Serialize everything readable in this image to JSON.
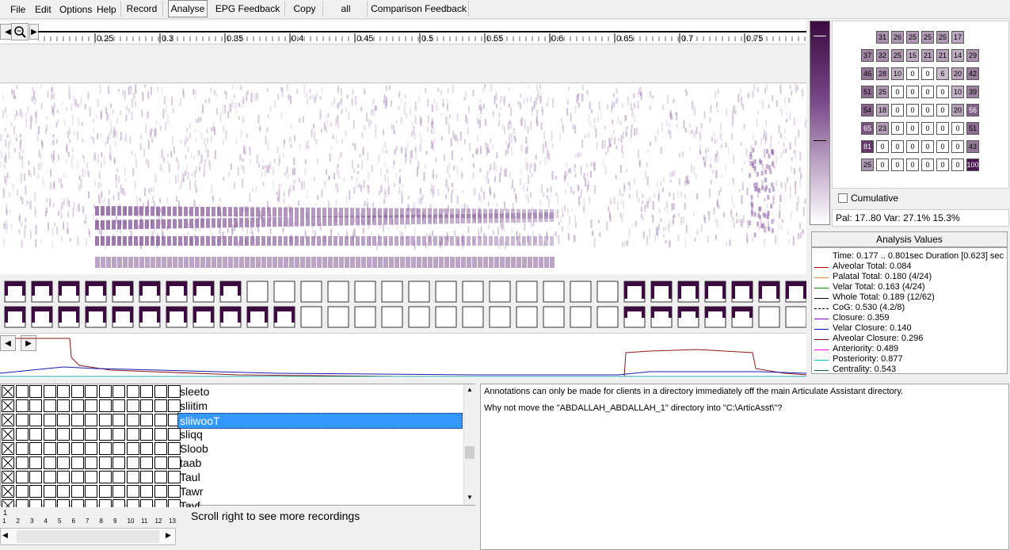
{
  "menu": {
    "file": "File",
    "edit": "Edit",
    "options": "Options",
    "help": "Help"
  },
  "toolbar": {
    "record": "Record",
    "analyse": "Analyse",
    "epg_feedback": "EPG Feedback",
    "copy": "Copy",
    "all": "all",
    "comparison": "Comparison Feedback"
  },
  "ruler": {
    "ticks": [
      "0.25",
      "0.3",
      "0.35",
      "0.4",
      "0.45",
      "0.5",
      "0.55",
      "0.6",
      "0.65",
      "0.7",
      "0.75"
    ]
  },
  "palate_grid": [
    [
      "",
      "31",
      "26",
      "25",
      "25",
      "25",
      "17",
      ""
    ],
    [
      "37",
      "32",
      "25",
      "15",
      "21",
      "21",
      "14",
      "29"
    ],
    [
      "46",
      "28",
      "10",
      "0",
      "0",
      "6",
      "20",
      "42"
    ],
    [
      "51",
      "25",
      "0",
      "0",
      "0",
      "0",
      "10",
      "39"
    ],
    [
      "54",
      "18",
      "0",
      "0",
      "0",
      "0",
      "20",
      "56"
    ],
    [
      "65",
      "23",
      "0",
      "0",
      "0",
      "0",
      "0",
      "51"
    ],
    [
      "81",
      "0",
      "0",
      "0",
      "0",
      "0",
      "0",
      "43"
    ],
    [
      "25",
      "0",
      "0",
      "0",
      "0",
      "0",
      "0",
      "100"
    ]
  ],
  "cumulative_label": "Cumulative",
  "pal_info": "Pal: 17..80 Var: 27.1%  15.3%",
  "analysis": {
    "title": "Analysis Values",
    "lines": [
      {
        "text": "Time: 0.177 .. 0.801sec Duration [0.623] sec",
        "color": ""
      },
      {
        "text": "Alveolar Total: 0.084",
        "color": "#c00000"
      },
      {
        "text": "Palatal Total: 0.180 (4/24)",
        "color": "#e08040"
      },
      {
        "text": "Velar Total: 0.163 (4/24)",
        "color": "#008000"
      },
      {
        "text": "Whole Total: 0.189 (12/62)",
        "color": "#000000"
      },
      {
        "text": "CoG: 0.530 (4.2/8)",
        "color": "#000000"
      },
      {
        "text": "Closure: 0.359",
        "color": "#8000c0"
      },
      {
        "text": "Velar Closure: 0.140",
        "color": "#0000c0"
      },
      {
        "text": "Alveolar Closure: 0.296",
        "color": "#800000"
      },
      {
        "text": "Anteriority: 0.489",
        "color": "#ff00ff"
      },
      {
        "text": "Posteriority: 0.877",
        "color": "#00c0c0"
      },
      {
        "text": "Centrality: 0.543",
        "color": "#006030"
      }
    ]
  },
  "recordings": [
    {
      "name": "sleeto",
      "selected": false
    },
    {
      "name": "sliitim",
      "selected": false
    },
    {
      "name": "sliiwooT",
      "selected": true
    },
    {
      "name": "sliqq",
      "selected": false
    },
    {
      "name": "Sloob",
      "selected": false
    },
    {
      "name": "taab",
      "selected": false
    },
    {
      "name": "Taul",
      "selected": false
    },
    {
      "name": "Tawr",
      "selected": false
    },
    {
      "name": "Tayf",
      "selected": false
    }
  ],
  "column_numbers": [
    "1",
    "2",
    "3",
    "4",
    "5",
    "6",
    "7",
    "8",
    "9",
    "10",
    "11",
    "12",
    "13"
  ],
  "scroll_hint": "Scroll right to see more recordings",
  "annotation": {
    "line1": "Annotations can only be made for clients in a directory immediately off the main Articulate Assistant directory.",
    "line2": "Why not move the \"ABDALLAH_ABDALLAH_1\" directory into \"C:\\ArticAsst\\\"?"
  }
}
